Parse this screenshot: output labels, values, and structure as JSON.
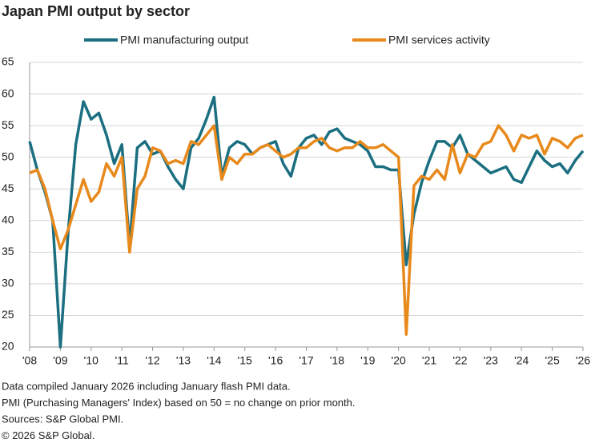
{
  "chart_data": {
    "type": "line",
    "title": "Japan PMI output by sector",
    "notes": [
      "Data compiled January 2026 including January flash PMI data.",
      "PMI (Purchasing Managers' Index) based on 50 = no change on prior month.",
      "Sources: S&P Global PMI.",
      "© 2026 S&P Global."
    ],
    "x": [
      2008,
      2008.25,
      2008.5,
      2008.75,
      2009,
      2009.25,
      2009.5,
      2009.75,
      2010,
      2010.25,
      2010.5,
      2010.75,
      2011,
      2011.25,
      2011.5,
      2011.75,
      2012,
      2012.25,
      2012.5,
      2012.75,
      2013,
      2013.25,
      2013.5,
      2013.75,
      2014,
      2014.25,
      2014.5,
      2014.75,
      2015,
      2015.25,
      2015.5,
      2015.75,
      2016,
      2016.25,
      2016.5,
      2016.75,
      2017,
      2017.25,
      2017.5,
      2017.75,
      2018,
      2018.25,
      2018.5,
      2018.75,
      2019,
      2019.25,
      2019.5,
      2019.75,
      2020,
      2020.25,
      2020.5,
      2020.75,
      2021,
      2021.25,
      2021.5,
      2021.75,
      2022,
      2022.25,
      2022.5,
      2022.75,
      2023,
      2023.25,
      2023.5,
      2023.75,
      2024,
      2024.25,
      2024.5,
      2024.75,
      2025,
      2025.25,
      2025.5,
      2025.75,
      2026
    ],
    "series": [
      {
        "name": "PMI manufacturing output",
        "color": "#1b6f80",
        "values": [
          52.5,
          48,
          44.5,
          40,
          20,
          38,
          52,
          58.8,
          56,
          57,
          53.5,
          49,
          52,
          36,
          51.5,
          52.5,
          50.5,
          51,
          48.5,
          46.5,
          45,
          51.5,
          53,
          56,
          59.5,
          47,
          51.5,
          52.5,
          52,
          50.5,
          51.5,
          52,
          52.5,
          49,
          47,
          51.5,
          53,
          53.5,
          52,
          54,
          54.5,
          53,
          52.5,
          52,
          51,
          48.5,
          48.5,
          48,
          48,
          33,
          41,
          46,
          49.5,
          52.5,
          52.5,
          51.5,
          53.5,
          50.5,
          49.5,
          48.5,
          47.5,
          48,
          48.5,
          46.5,
          46,
          48.5,
          51,
          49.5,
          48.5,
          49,
          47.5,
          49.5,
          51
        ]
      },
      {
        "name": "PMI services activity",
        "color": "#e8891c",
        "values": [
          47.5,
          48,
          45,
          40,
          35.5,
          38.5,
          42.5,
          46.5,
          43,
          44.5,
          49,
          47,
          50,
          35,
          45,
          47,
          51.5,
          51,
          49,
          49.5,
          49,
          52.5,
          52,
          53.5,
          55,
          46.5,
          50,
          49,
          50.5,
          50.5,
          51.5,
          52,
          51,
          50,
          50.5,
          51.5,
          51.5,
          52.5,
          53,
          51.5,
          51,
          51.5,
          51.5,
          52.5,
          51.5,
          51.5,
          52,
          51,
          50,
          22,
          45.5,
          47,
          46.5,
          48,
          46.5,
          52,
          47.5,
          50.5,
          50,
          52,
          52.5,
          55,
          53.5,
          51,
          53.5,
          53,
          53.5,
          50.5,
          53,
          52.5,
          51.5,
          53,
          53.5
        ]
      }
    ],
    "xlim": [
      2008,
      2026
    ],
    "xticks": [
      {
        "value": 2008,
        "label": "'08"
      },
      {
        "value": 2009,
        "label": "'09"
      },
      {
        "value": 2010,
        "label": "'10"
      },
      {
        "value": 2011,
        "label": "'11"
      },
      {
        "value": 2012,
        "label": "'12"
      },
      {
        "value": 2013,
        "label": "'13"
      },
      {
        "value": 2014,
        "label": "'14"
      },
      {
        "value": 2015,
        "label": "'15"
      },
      {
        "value": 2016,
        "label": "'16"
      },
      {
        "value": 2017,
        "label": "'17"
      },
      {
        "value": 2018,
        "label": "'18"
      },
      {
        "value": 2019,
        "label": "'19"
      },
      {
        "value": 2020,
        "label": "'20"
      },
      {
        "value": 2021,
        "label": "'21"
      },
      {
        "value": 2022,
        "label": "'22"
      },
      {
        "value": 2023,
        "label": "'23"
      },
      {
        "value": 2024,
        "label": "'24"
      },
      {
        "value": 2025,
        "label": "'25"
      },
      {
        "value": 2026,
        "label": "'26"
      }
    ],
    "ylim": [
      20,
      65
    ],
    "yticks": [
      20,
      25,
      30,
      35,
      40,
      45,
      50,
      55,
      60,
      65
    ],
    "grid": true
  }
}
